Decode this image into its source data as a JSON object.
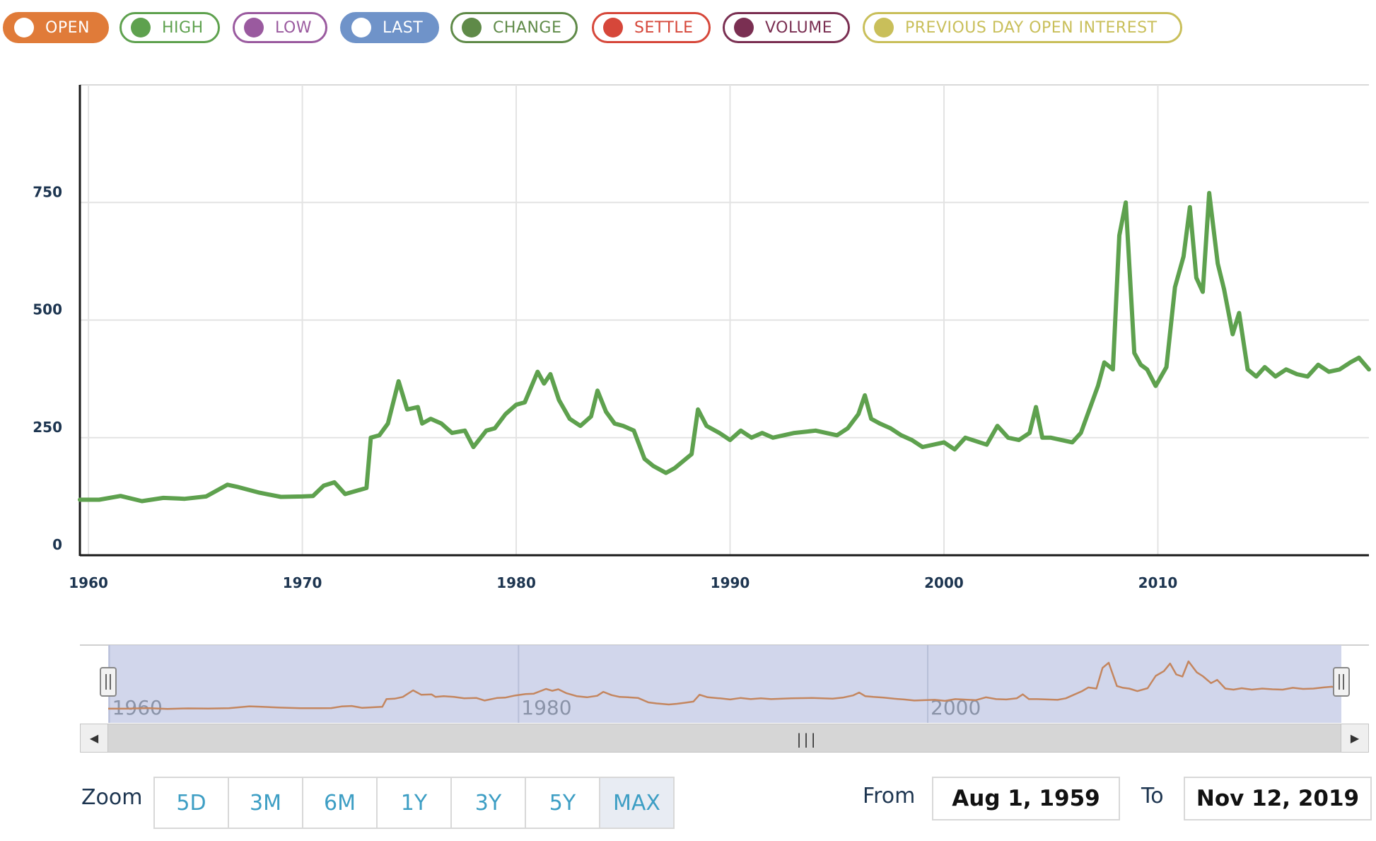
{
  "legend": [
    {
      "label": "OPEN",
      "color": "#e07b39",
      "active": true
    },
    {
      "label": "HIGH",
      "color": "#5ea14e",
      "active": false
    },
    {
      "label": "LOW",
      "color": "#9a5a9f",
      "active": false
    },
    {
      "label": "LAST",
      "color": "#6f93c9",
      "active": true
    },
    {
      "label": "CHANGE",
      "color": "#5f8a48",
      "active": false
    },
    {
      "label": "SETTLE",
      "color": "#d6473a",
      "active": false
    },
    {
      "label": "VOLUME",
      "color": "#7a2f52",
      "active": false
    },
    {
      "label": "PREVIOUS DAY OPEN INTEREST",
      "color": "#c9bf5a",
      "active": false
    }
  ],
  "chart_data": {
    "type": "line",
    "title": "",
    "xlabel": "",
    "ylabel": "",
    "xlim": [
      1959.6,
      2019.87
    ],
    "ylim": [
      0,
      1000
    ],
    "yticks": [
      0,
      250,
      500,
      750
    ],
    "xticks": [
      1960,
      1970,
      1980,
      1990,
      2000,
      2010
    ],
    "grid": true,
    "legend_placement": "top",
    "series": [
      {
        "color": "#5ea14e",
        "x": [
          1959.6,
          1960.5,
          1961.5,
          1962.5,
          1963.5,
          1964.5,
          1965.5,
          1966.5,
          1967,
          1968,
          1969,
          1970,
          1970.5,
          1971,
          1971.5,
          1972,
          1973,
          1973.2,
          1973.6,
          1974,
          1974.5,
          1974.9,
          1975.4,
          1975.6,
          1976,
          1976.5,
          1977,
          1977.6,
          1978,
          1978.6,
          1979,
          1979.5,
          1980,
          1980.4,
          1981,
          1981.3,
          1981.6,
          1982,
          1982.5,
          1983,
          1983.5,
          1983.8,
          1984.2,
          1984.6,
          1985,
          1985.5,
          1986,
          1986.4,
          1986.8,
          1987,
          1987.4,
          1987.8,
          1988.2,
          1988.5,
          1988.9,
          1989.5,
          1990,
          1990.5,
          1991,
          1991.5,
          1992,
          1993,
          1994,
          1995,
          1995.5,
          1996,
          1996.3,
          1996.6,
          1997,
          1997.5,
          1998,
          1998.5,
          1999,
          2000,
          2000.5,
          2001,
          2002,
          2002.5,
          2003,
          2003.5,
          2004,
          2004.3,
          2004.6,
          2005,
          2006,
          2006.4,
          2006.8,
          2007.2,
          2007.5,
          2007.9,
          2008.2,
          2008.5,
          2008.9,
          2009.2,
          2009.5,
          2009.9,
          2010.4,
          2010.8,
          2011.2,
          2011.5,
          2011.8,
          2012.1,
          2012.4,
          2012.8,
          2013.1,
          2013.5,
          2013.8,
          2014.2,
          2014.6,
          2015,
          2015.5,
          2016,
          2016.5,
          2017,
          2017.5,
          2018,
          2018.5,
          2019,
          2019.4,
          2019.87
        ],
        "values": [
          118,
          118,
          126,
          115,
          122,
          120,
          125,
          150,
          145,
          133,
          124,
          125,
          126,
          148,
          155,
          130,
          143,
          250,
          255,
          280,
          370,
          310,
          315,
          280,
          290,
          280,
          260,
          265,
          230,
          265,
          270,
          300,
          320,
          325,
          390,
          365,
          385,
          330,
          290,
          275,
          295,
          350,
          305,
          280,
          275,
          265,
          205,
          190,
          180,
          175,
          185,
          200,
          215,
          310,
          275,
          260,
          245,
          265,
          250,
          260,
          250,
          260,
          265,
          255,
          270,
          300,
          340,
          290,
          280,
          270,
          255,
          245,
          230,
          240,
          225,
          250,
          235,
          275,
          250,
          245,
          260,
          315,
          250,
          250,
          240,
          260,
          310,
          360,
          410,
          395,
          680,
          750,
          430,
          405,
          395,
          360,
          400,
          570,
          635,
          740,
          590,
          560,
          770,
          620,
          565,
          470,
          515,
          395,
          380,
          400,
          380,
          395,
          385,
          380,
          405,
          390,
          395,
          410,
          420,
          395
        ],
        "linestyle": "solid"
      }
    ],
    "navigator": {
      "color": "#c4865f",
      "tick_labels": [
        "1960",
        "1980",
        "2000"
      ]
    }
  },
  "zoom": {
    "label": "Zoom",
    "buttons": [
      "5D",
      "3M",
      "6M",
      "1Y",
      "3Y",
      "5Y",
      "MAX"
    ],
    "selected": "MAX"
  },
  "range": {
    "from_label": "From",
    "from_value": "Aug 1, 1959",
    "to_label": "To",
    "to_value": "Nov 12, 2019"
  }
}
